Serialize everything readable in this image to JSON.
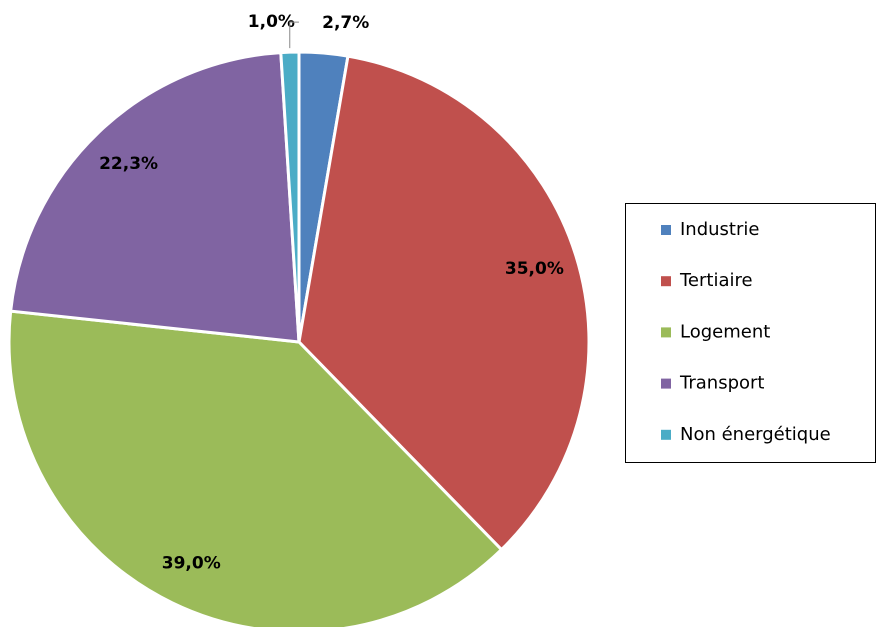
{
  "chart_data": {
    "type": "pie",
    "categories": [
      "Industrie",
      "Tertiaire",
      "Logement",
      "Transport",
      "Non énergétique"
    ],
    "values": [
      2.7,
      35.0,
      39.0,
      22.3,
      1.0
    ],
    "value_labels": [
      "2,7%",
      "35,0%",
      "39,0%",
      "22,3%",
      "1,0%"
    ],
    "colors": [
      "#4f81bd",
      "#c0504d",
      "#9bbb59",
      "#8064a2",
      "#4bacc6"
    ],
    "legend": "right"
  }
}
